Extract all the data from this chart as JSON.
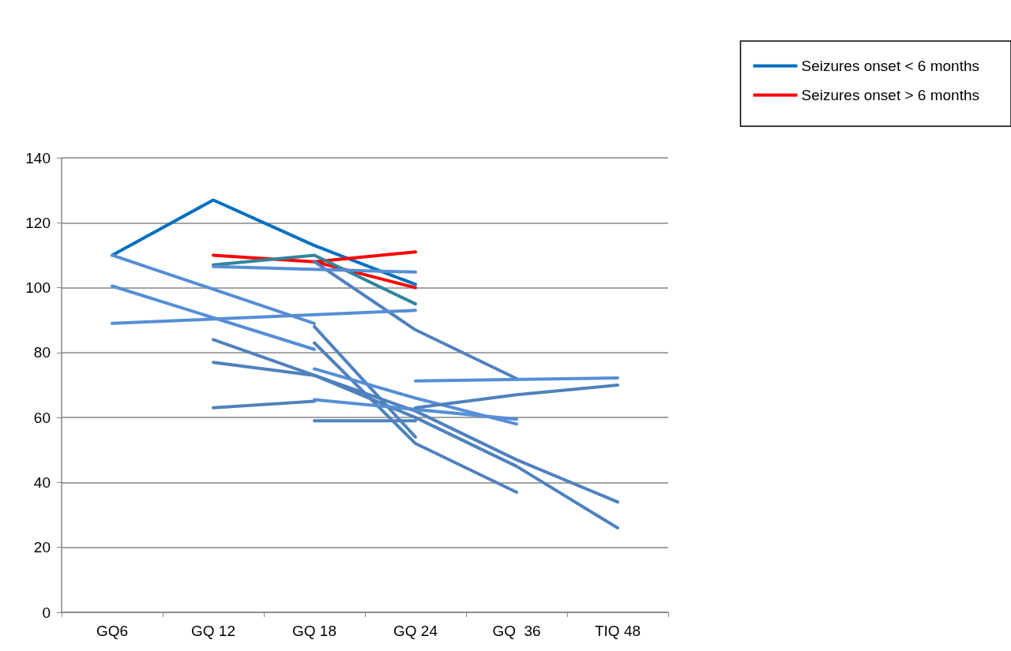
{
  "chart_data": {
    "type": "line",
    "categories": [
      "GQ6",
      "GQ 12",
      "GQ 18",
      "GQ 24",
      "GQ  36",
      "TIQ 48"
    ],
    "ylim": [
      0,
      140
    ],
    "yticks": [
      0,
      20,
      40,
      60,
      80,
      100,
      120,
      140
    ],
    "grid": "y",
    "legend": "top right",
    "marker": "none",
    "line_style": "solid",
    "series": [
      {
        "name": "Seizures onset < 6 months",
        "color": "#0070c0",
        "values": [
          110,
          127,
          113,
          101,
          null,
          null
        ]
      },
      {
        "name": "Seizures onset > 6 months",
        "color": "#ff0000",
        "values": [
          null,
          110,
          108,
          111,
          null,
          null
        ]
      },
      {
        "color": "#ff0000",
        "values": [
          null,
          null,
          108,
          100,
          null,
          null
        ]
      },
      {
        "color": "#31859c",
        "values": [
          null,
          107,
          110,
          95,
          null,
          null
        ]
      },
      {
        "color": "#4f81bd",
        "values": [
          null,
          null,
          108,
          87,
          72,
          null
        ]
      },
      {
        "color": "#558ed5",
        "values": [
          null,
          106.5,
          null,
          104.8,
          null,
          null
        ]
      },
      {
        "color": "#558ed5",
        "values": [
          110,
          null,
          89,
          null,
          null,
          null
        ]
      },
      {
        "color": "#558ed5",
        "values": [
          100.5,
          null,
          81,
          null,
          null,
          null
        ]
      },
      {
        "color": "#558ed5",
        "values": [
          89,
          null,
          null,
          93,
          null,
          null
        ]
      },
      {
        "color": "#4f81bd",
        "values": [
          null,
          null,
          88,
          54,
          null,
          null
        ]
      },
      {
        "color": "#4f81bd",
        "values": [
          null,
          null,
          83,
          52,
          37,
          null
        ]
      },
      {
        "color": "#4f81bd",
        "values": [
          null,
          84,
          73,
          62,
          47,
          34
        ]
      },
      {
        "color": "#4f81bd",
        "values": [
          null,
          77,
          73,
          60,
          45,
          26
        ]
      },
      {
        "color": "#4f81bd",
        "values": [
          null,
          63,
          65,
          null,
          null,
          null
        ]
      },
      {
        "color": "#4f81bd",
        "values": [
          null,
          null,
          59,
          59,
          null,
          null
        ]
      },
      {
        "color": "#558ed5",
        "values": [
          null,
          null,
          75,
          66,
          58,
          null
        ]
      },
      {
        "color": "#558ed5",
        "values": [
          null,
          null,
          65.5,
          null,
          59.5,
          null
        ]
      },
      {
        "color": "#4f81bd",
        "values": [
          null,
          null,
          null,
          63,
          67,
          70
        ]
      },
      {
        "color": "#558ed5",
        "values": [
          null,
          null,
          null,
          71.3,
          null,
          72.2
        ]
      }
    ]
  }
}
